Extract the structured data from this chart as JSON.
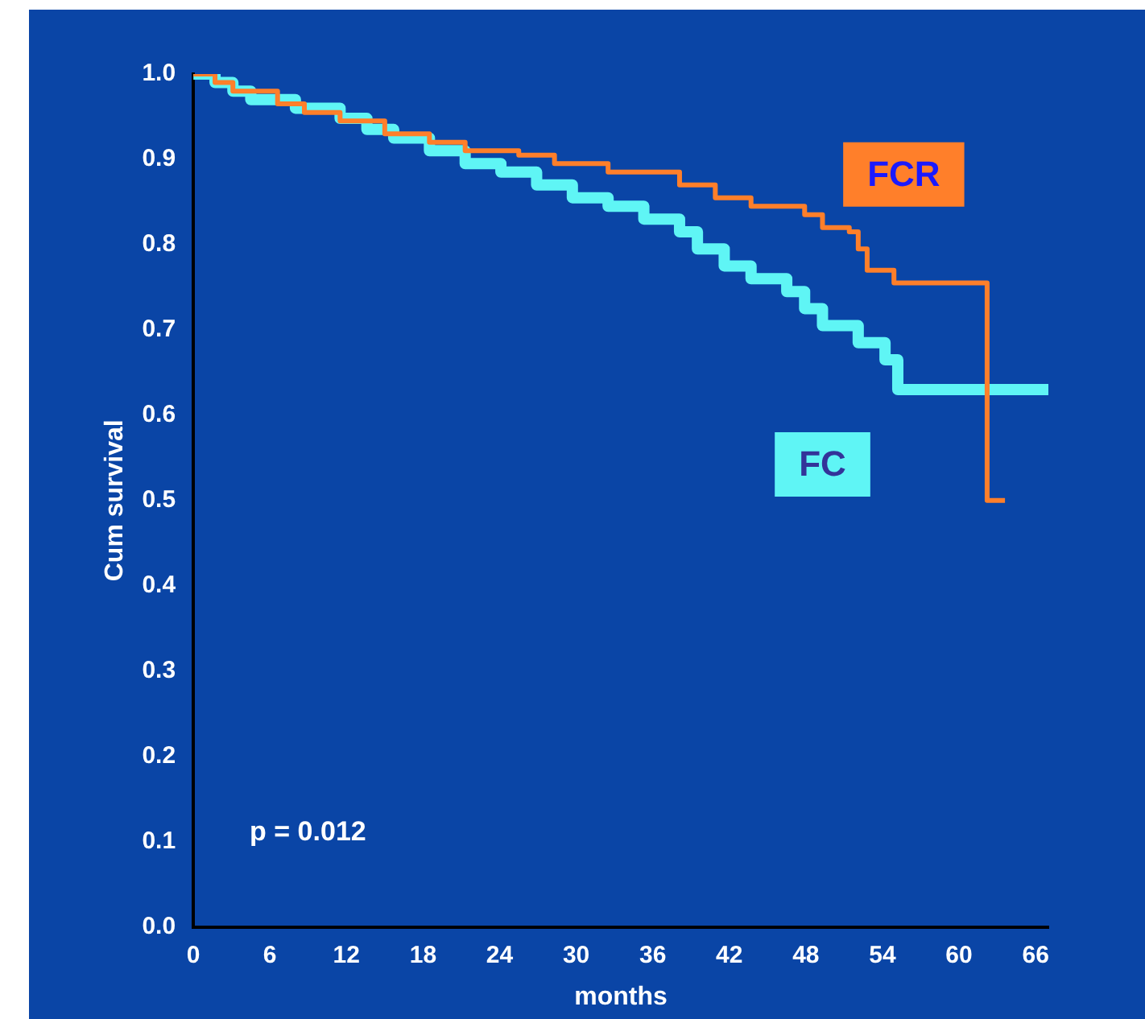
{
  "chart_data": {
    "type": "step",
    "xlabel": "months",
    "ylabel": "Cum survival",
    "annotations": [
      "p = 0.012"
    ],
    "xlim": [
      0,
      67
    ],
    "xticks": [
      0,
      6,
      12,
      18,
      24,
      30,
      36,
      42,
      48,
      54,
      60,
      66
    ],
    "ylim": [
      0,
      1
    ],
    "yticks": [
      {
        "value": 0,
        "label": "0.0"
      },
      0.1,
      0.2,
      0.3,
      0.4,
      0.5,
      0.6,
      0.7,
      0.8,
      0.9,
      {
        "value": 1,
        "label": "1.0"
      }
    ],
    "grid": false,
    "legend": false,
    "marker": "none",
    "line_style": "solid",
    "series": [
      {
        "name": "FCR",
        "color": "#ff7f2a",
        "x": [
          0,
          1.7,
          3.1,
          6.6,
          8.7,
          11.5,
          15,
          18.5,
          21.3,
          25.5,
          28.3,
          32.5,
          38.1,
          40.9,
          43.7,
          47.9,
          49.3,
          51.4,
          52.1,
          52.8,
          54.9,
          62.2,
          63.6
        ],
        "values": [
          1.0,
          0.99,
          0.98,
          0.965,
          0.955,
          0.945,
          0.93,
          0.92,
          0.91,
          0.905,
          0.895,
          0.885,
          0.87,
          0.855,
          0.845,
          0.835,
          0.82,
          0.815,
          0.795,
          0.77,
          0.755,
          0.5,
          0.5
        ]
      },
      {
        "name": "FC",
        "color": "#5ff5f5",
        "x": [
          0,
          1.7,
          3.1,
          4.5,
          8,
          11.5,
          13.6,
          15.7,
          18.5,
          21.3,
          24.1,
          26.9,
          29.7,
          32.5,
          35.3,
          38.1,
          39.5,
          41.6,
          43.7,
          46.5,
          47.9,
          49.3,
          52.1,
          54.2,
          55.2,
          67
        ],
        "values": [
          1.0,
          0.99,
          0.98,
          0.97,
          0.96,
          0.948,
          0.935,
          0.925,
          0.91,
          0.895,
          0.885,
          0.87,
          0.855,
          0.845,
          0.83,
          0.815,
          0.795,
          0.775,
          0.76,
          0.745,
          0.725,
          0.705,
          0.685,
          0.665,
          0.63,
          0.63
        ]
      }
    ]
  }
}
